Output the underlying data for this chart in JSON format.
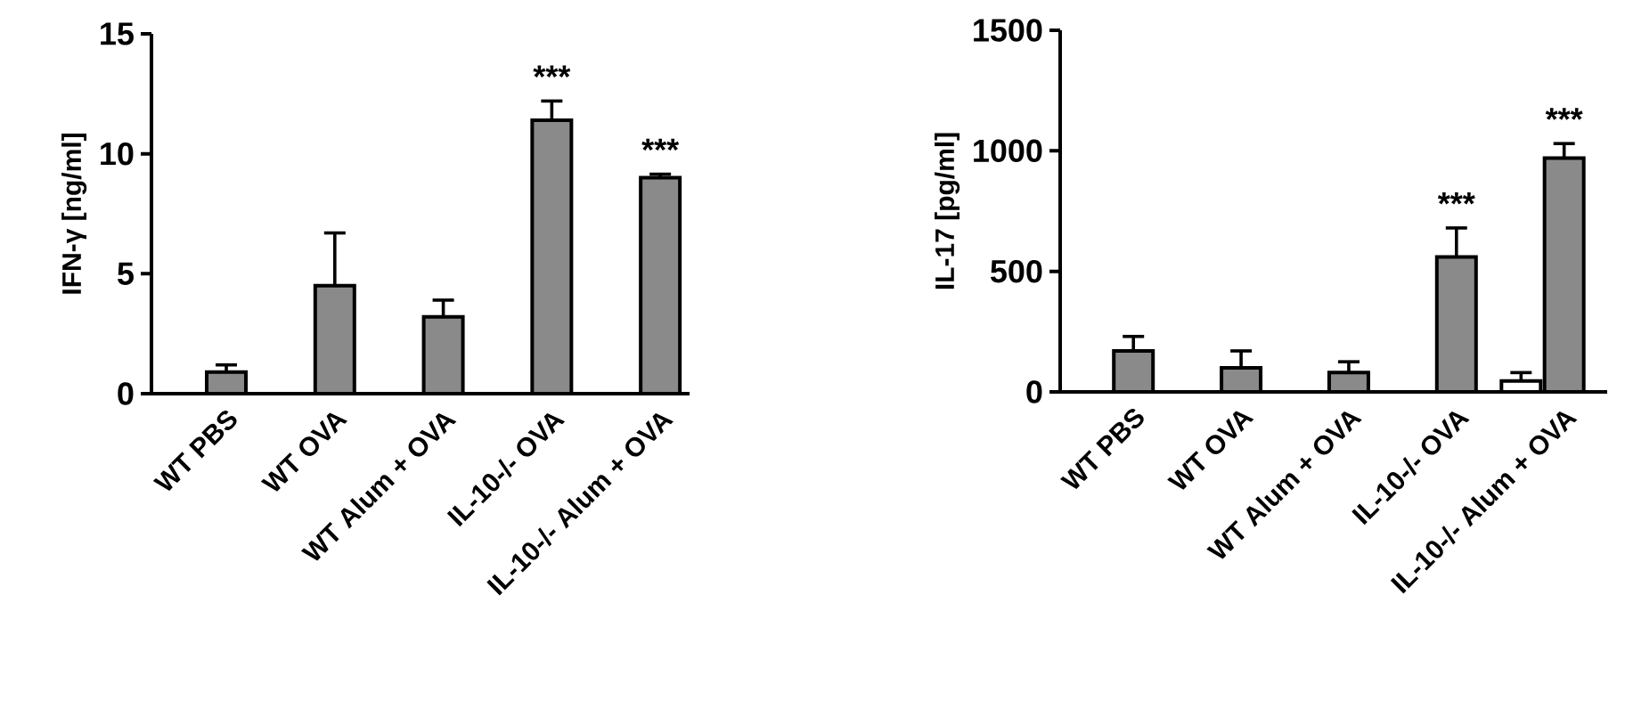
{
  "chart_data": [
    {
      "type": "bar",
      "ylabel": "IFN-γ [ng/ml]",
      "categories": [
        "WT PBS",
        "WT OVA",
        "WT Alum + OVA",
        "IL-10-/- OVA",
        "IL-10-/- Alum + OVA"
      ],
      "values": [
        0.9,
        4.5,
        3.2,
        11.4,
        9.0
      ],
      "errors": [
        0.3,
        2.2,
        0.7,
        0.8,
        0.15
      ],
      "color": "#8a8a8a",
      "ylim": [
        0,
        15
      ],
      "yticks": [
        0,
        5,
        10,
        15
      ],
      "grid": false,
      "annotations": [
        "***",
        "***"
      ]
    },
    {
      "type": "bar",
      "ylabel": "IL-17 [pg/ml]",
      "categories": [
        "WT PBS",
        "WT OVA",
        "WT Alum + OVA",
        "IL-10-/- OVA",
        "IL-10-/- Alum + OVA"
      ],
      "series": [
        {
          "color": "#ffffff",
          "values": [
            null,
            null,
            null,
            null,
            45
          ],
          "errors": [
            null,
            null,
            null,
            null,
            35
          ]
        },
        {
          "color": "#8a8a8a",
          "values": [
            170,
            100,
            80,
            560,
            970
          ],
          "errors": [
            60,
            70,
            45,
            120,
            60
          ]
        }
      ],
      "ylim": [
        0,
        1500
      ],
      "yticks": [
        0,
        500,
        1000,
        1500
      ],
      "grid": false,
      "annotations": [
        "***",
        "***"
      ]
    }
  ]
}
